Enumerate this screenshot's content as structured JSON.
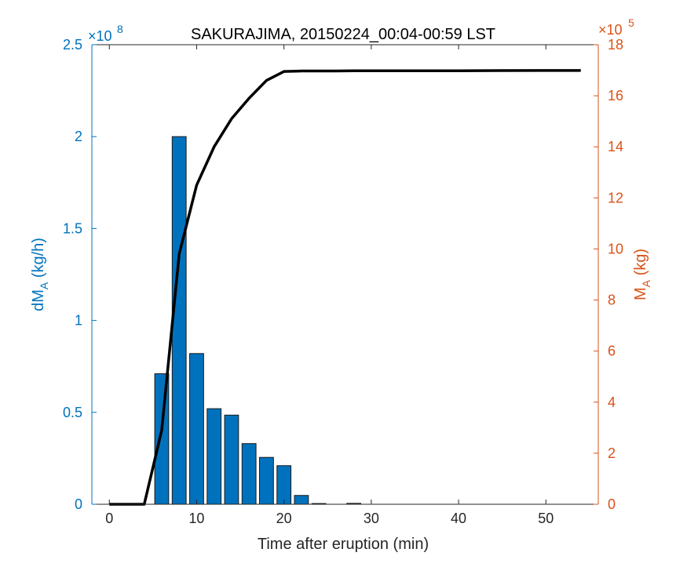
{
  "chart_data": {
    "type": "bar",
    "title": "SAKURAJIMA, 20150224_00:04-00:59 LST",
    "xlabel": "Time after eruption (min)",
    "ylabel_left": {
      "main": "dM",
      "sub": "A",
      "unit": " (kg/h)"
    },
    "ylabel_right": {
      "main": "M",
      "sub": "A",
      "unit": " (kg)"
    },
    "left_exponent": {
      "prefix": "×10",
      "power": "8"
    },
    "right_exponent": {
      "prefix": "×10",
      "power": "5"
    },
    "xlim": [
      -2,
      56
    ],
    "ylim_left": [
      0,
      2.5
    ],
    "ylim_right": [
      0,
      18
    ],
    "x_ticks": [
      0,
      10,
      20,
      30,
      40,
      50
    ],
    "y_left_ticks": [
      0,
      0.5,
      1,
      1.5,
      2,
      2.5
    ],
    "y_left_tick_labels": [
      "0",
      "0.5",
      "1",
      "1.5",
      "2",
      "2.5"
    ],
    "y_right_ticks": [
      0,
      2,
      4,
      6,
      8,
      10,
      12,
      14,
      16,
      18
    ],
    "bar_width": 1.6,
    "colors": {
      "bar": "#0072BD",
      "bar_edge": "#1a1a1a",
      "line": "#000000",
      "left_axis": "#0072BD",
      "right_axis": "#D95319",
      "x_axis": "#262626"
    },
    "bars": {
      "x": [
        0,
        2,
        4,
        6,
        8,
        10,
        12,
        14,
        16,
        18,
        20,
        22,
        24,
        26,
        28
      ],
      "values": [
        0,
        0,
        0,
        0.71,
        2.0,
        0.82,
        0.52,
        0.485,
        0.33,
        0.255,
        0.21,
        0.048,
        0.004,
        0.0,
        0.005
      ]
    },
    "line": {
      "x": [
        0,
        4,
        6,
        8,
        10,
        12,
        14,
        16,
        18,
        20,
        22,
        24,
        26,
        28,
        30,
        40,
        50,
        54
      ],
      "values": [
        0,
        0,
        2.9,
        9.8,
        12.5,
        14.0,
        15.1,
        15.9,
        16.6,
        16.95,
        16.97,
        16.97,
        16.97,
        16.98,
        16.98,
        16.98,
        16.99,
        16.99
      ]
    }
  }
}
